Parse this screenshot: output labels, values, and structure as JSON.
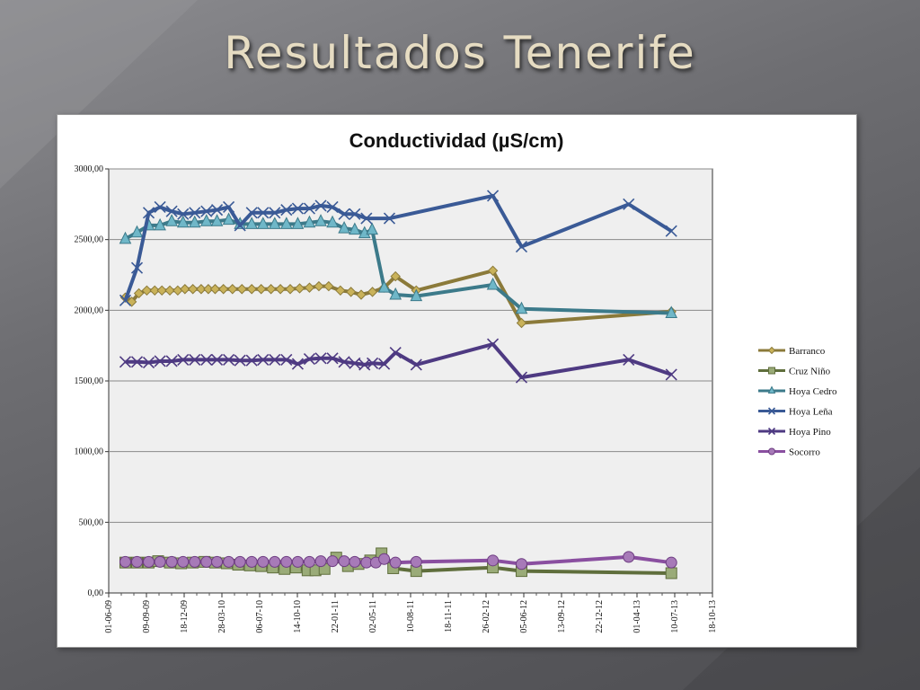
{
  "slide": {
    "title": "Resultados Tenerife"
  },
  "chart_data": {
    "type": "line",
    "title": "Conductividad (µS/cm)",
    "xlabel": "",
    "ylabel": "",
    "x_axis_type": "date",
    "xlim": [
      "2009-06-01",
      "2013-10-18"
    ],
    "ylim": [
      0,
      3000
    ],
    "y_ticks": [
      0,
      500,
      1000,
      1500,
      2000,
      2500,
      3000
    ],
    "y_tick_labels": [
      "0,00",
      "500,00",
      "1000,00",
      "1500,00",
      "2000,00",
      "2500,00",
      "3000,00"
    ],
    "x_ticks": [
      "2009-06-01",
      "2009-09-09",
      "2009-12-18",
      "2010-03-28",
      "2010-07-06",
      "2010-10-14",
      "2011-01-22",
      "2011-05-02",
      "2011-08-10",
      "2011-11-18",
      "2012-02-26",
      "2012-06-05",
      "2012-09-13",
      "2012-12-22",
      "2013-04-01",
      "2013-07-10",
      "2013-10-18"
    ],
    "x_tick_labels": [
      "01-06-09",
      "09-09-09",
      "18-12-09",
      "28-03-10",
      "06-07-10",
      "14-10-10",
      "22-01-11",
      "02-05-11",
      "10-08-11",
      "18-11-11",
      "26-02-12",
      "05-06-12",
      "13-09-12",
      "22-12-12",
      "01-04-13",
      "10-07-13",
      "18-10-13"
    ],
    "grid": true,
    "legend_position": "right",
    "series": [
      {
        "name": "Barranco",
        "color": "#8b7a3a",
        "marker": "diamond",
        "points": [
          [
            "2009-07-15",
            2090
          ],
          [
            "2009-08-01",
            2060
          ],
          [
            "2009-08-20",
            2120
          ],
          [
            "2009-09-10",
            2140
          ],
          [
            "2009-10-01",
            2140
          ],
          [
            "2009-10-20",
            2140
          ],
          [
            "2009-11-10",
            2140
          ],
          [
            "2009-12-01",
            2140
          ],
          [
            "2009-12-20",
            2150
          ],
          [
            "2010-01-10",
            2150
          ],
          [
            "2010-02-01",
            2150
          ],
          [
            "2010-02-20",
            2150
          ],
          [
            "2010-03-10",
            2150
          ],
          [
            "2010-04-01",
            2150
          ],
          [
            "2010-04-25",
            2150
          ],
          [
            "2010-05-20",
            2150
          ],
          [
            "2010-06-15",
            2150
          ],
          [
            "2010-07-10",
            2150
          ],
          [
            "2010-08-05",
            2150
          ],
          [
            "2010-08-30",
            2150
          ],
          [
            "2010-09-25",
            2150
          ],
          [
            "2010-10-20",
            2155
          ],
          [
            "2010-11-15",
            2160
          ],
          [
            "2010-12-10",
            2170
          ],
          [
            "2011-01-05",
            2170
          ],
          [
            "2011-02-05",
            2140
          ],
          [
            "2011-03-05",
            2130
          ],
          [
            "2011-04-01",
            2110
          ],
          [
            "2011-05-01",
            2130
          ],
          [
            "2011-06-01",
            2160
          ],
          [
            "2011-07-01",
            2240
          ],
          [
            "2011-08-25",
            2140
          ],
          [
            "2012-03-15",
            2280
          ],
          [
            "2012-05-30",
            1910
          ],
          [
            "2013-07-01",
            1990
          ]
        ]
      },
      {
        "name": "Cruz Niño",
        "color": "#5f6e3c",
        "marker": "square",
        "points": [
          [
            "2009-07-15",
            215
          ],
          [
            "2009-08-15",
            215
          ],
          [
            "2009-09-15",
            215
          ],
          [
            "2009-10-10",
            225
          ],
          [
            "2009-11-10",
            215
          ],
          [
            "2009-12-10",
            210
          ],
          [
            "2010-01-10",
            215
          ],
          [
            "2010-02-10",
            220
          ],
          [
            "2010-03-10",
            215
          ],
          [
            "2010-04-10",
            210
          ],
          [
            "2010-05-10",
            200
          ],
          [
            "2010-06-10",
            195
          ],
          [
            "2010-07-10",
            190
          ],
          [
            "2010-08-10",
            180
          ],
          [
            "2010-09-10",
            170
          ],
          [
            "2010-10-10",
            180
          ],
          [
            "2010-11-10",
            160
          ],
          [
            "2010-12-01",
            160
          ],
          [
            "2010-12-25",
            170
          ],
          [
            "2011-01-25",
            250
          ],
          [
            "2011-02-25",
            190
          ],
          [
            "2011-03-25",
            205
          ],
          [
            "2011-04-25",
            230
          ],
          [
            "2011-05-25",
            280
          ],
          [
            "2011-06-25",
            175
          ],
          [
            "2011-08-25",
            155
          ],
          [
            "2012-03-15",
            180
          ],
          [
            "2012-05-30",
            155
          ],
          [
            "2013-07-01",
            140
          ]
        ]
      },
      {
        "name": "Hoya Cedro",
        "color": "#3c7a8a",
        "marker": "triangle",
        "points": [
          [
            "2009-07-15",
            2505
          ],
          [
            "2009-08-15",
            2550
          ],
          [
            "2009-09-15",
            2600
          ],
          [
            "2009-10-15",
            2600
          ],
          [
            "2009-11-15",
            2630
          ],
          [
            "2009-12-15",
            2620
          ],
          [
            "2010-01-15",
            2620
          ],
          [
            "2010-02-15",
            2630
          ],
          [
            "2010-03-15",
            2630
          ],
          [
            "2010-04-15",
            2640
          ],
          [
            "2010-05-15",
            2610
          ],
          [
            "2010-06-15",
            2610
          ],
          [
            "2010-07-15",
            2610
          ],
          [
            "2010-08-15",
            2610
          ],
          [
            "2010-09-15",
            2610
          ],
          [
            "2010-10-15",
            2610
          ],
          [
            "2010-11-15",
            2620
          ],
          [
            "2010-12-15",
            2630
          ],
          [
            "2011-01-15",
            2620
          ],
          [
            "2011-02-15",
            2580
          ],
          [
            "2011-03-15",
            2570
          ],
          [
            "2011-04-10",
            2545
          ],
          [
            "2011-04-30",
            2570
          ],
          [
            "2011-06-01",
            2160
          ],
          [
            "2011-07-01",
            2110
          ],
          [
            "2011-08-25",
            2100
          ],
          [
            "2012-03-15",
            2180
          ],
          [
            "2012-05-30",
            2010
          ],
          [
            "2013-07-01",
            1980
          ]
        ]
      },
      {
        "name": "Hoya Leña",
        "color": "#3a5a96",
        "marker": "x",
        "points": [
          [
            "2009-07-15",
            2070
          ],
          [
            "2009-08-15",
            2300
          ],
          [
            "2009-09-15",
            2690
          ],
          [
            "2009-10-15",
            2730
          ],
          [
            "2009-11-15",
            2700
          ],
          [
            "2009-12-15",
            2680
          ],
          [
            "2010-01-15",
            2690
          ],
          [
            "2010-02-15",
            2700
          ],
          [
            "2010-03-15",
            2710
          ],
          [
            "2010-04-15",
            2730
          ],
          [
            "2010-05-15",
            2600
          ],
          [
            "2010-06-15",
            2690
          ],
          [
            "2010-07-15",
            2690
          ],
          [
            "2010-08-15",
            2690
          ],
          [
            "2010-09-15",
            2710
          ],
          [
            "2010-10-15",
            2720
          ],
          [
            "2010-11-15",
            2720
          ],
          [
            "2010-12-15",
            2740
          ],
          [
            "2011-01-15",
            2730
          ],
          [
            "2011-02-15",
            2680
          ],
          [
            "2011-03-15",
            2680
          ],
          [
            "2011-04-15",
            2650
          ],
          [
            "2011-06-15",
            2650
          ],
          [
            "2012-03-15",
            2810
          ],
          [
            "2012-05-30",
            2450
          ],
          [
            "2013-03-10",
            2750
          ],
          [
            "2013-07-01",
            2560
          ]
        ]
      },
      {
        "name": "Hoya Pino",
        "color": "#4e3a82",
        "marker": "x",
        "points": [
          [
            "2009-07-15",
            1635
          ],
          [
            "2009-08-15",
            1635
          ],
          [
            "2009-09-15",
            1630
          ],
          [
            "2009-10-15",
            1640
          ],
          [
            "2009-11-15",
            1640
          ],
          [
            "2009-12-15",
            1650
          ],
          [
            "2010-01-15",
            1650
          ],
          [
            "2010-02-15",
            1650
          ],
          [
            "2010-03-15",
            1650
          ],
          [
            "2010-04-15",
            1650
          ],
          [
            "2010-05-15",
            1645
          ],
          [
            "2010-06-15",
            1645
          ],
          [
            "2010-07-15",
            1650
          ],
          [
            "2010-08-15",
            1650
          ],
          [
            "2010-09-15",
            1650
          ],
          [
            "2010-10-15",
            1620
          ],
          [
            "2010-11-15",
            1655
          ],
          [
            "2010-12-15",
            1660
          ],
          [
            "2011-01-15",
            1660
          ],
          [
            "2011-02-15",
            1635
          ],
          [
            "2011-03-15",
            1625
          ],
          [
            "2011-04-10",
            1615
          ],
          [
            "2011-05-01",
            1625
          ],
          [
            "2011-06-01",
            1620
          ],
          [
            "2011-07-01",
            1700
          ],
          [
            "2011-08-25",
            1615
          ],
          [
            "2012-03-15",
            1760
          ],
          [
            "2012-05-30",
            1525
          ],
          [
            "2013-03-10",
            1650
          ],
          [
            "2013-07-01",
            1545
          ]
        ]
      },
      {
        "name": "Socorro",
        "color": "#8a4fa0",
        "marker": "circle",
        "points": [
          [
            "2009-07-15",
            220
          ],
          [
            "2009-08-15",
            220
          ],
          [
            "2009-09-15",
            220
          ],
          [
            "2009-10-15",
            220
          ],
          [
            "2009-11-15",
            220
          ],
          [
            "2009-12-15",
            220
          ],
          [
            "2010-01-15",
            220
          ],
          [
            "2010-02-15",
            220
          ],
          [
            "2010-03-15",
            220
          ],
          [
            "2010-04-15",
            220
          ],
          [
            "2010-05-15",
            220
          ],
          [
            "2010-06-15",
            220
          ],
          [
            "2010-07-15",
            220
          ],
          [
            "2010-08-15",
            220
          ],
          [
            "2010-09-15",
            220
          ],
          [
            "2010-10-15",
            220
          ],
          [
            "2010-11-15",
            220
          ],
          [
            "2010-12-15",
            225
          ],
          [
            "2011-01-15",
            225
          ],
          [
            "2011-02-15",
            225
          ],
          [
            "2011-03-15",
            220
          ],
          [
            "2011-04-15",
            215
          ],
          [
            "2011-05-10",
            215
          ],
          [
            "2011-06-01",
            240
          ],
          [
            "2011-07-01",
            215
          ],
          [
            "2011-08-25",
            220
          ],
          [
            "2012-03-15",
            230
          ],
          [
            "2012-05-30",
            205
          ],
          [
            "2013-03-10",
            255
          ],
          [
            "2013-07-01",
            215
          ]
        ]
      }
    ]
  }
}
